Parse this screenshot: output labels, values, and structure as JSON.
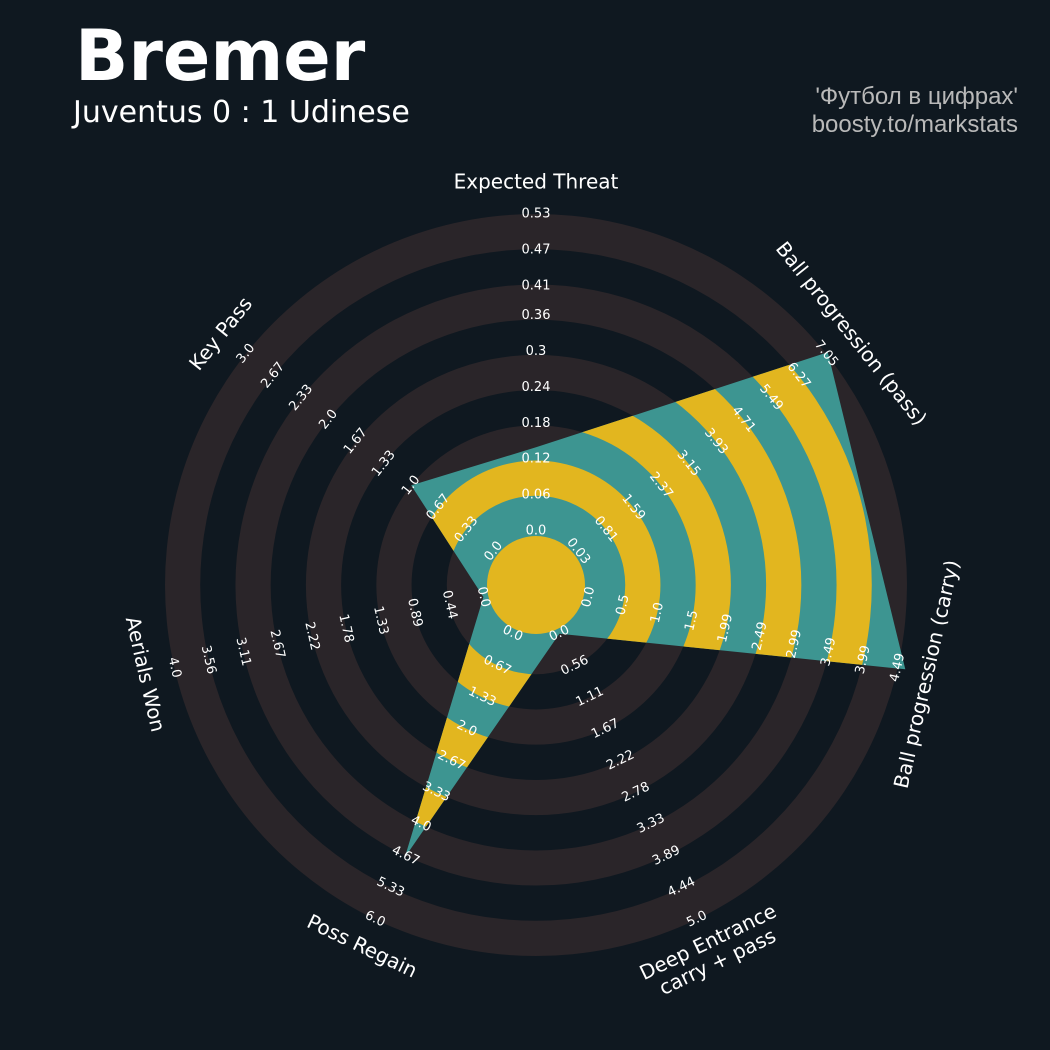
{
  "chart_data": {
    "type": "radar",
    "title": "Bremer",
    "subtitle": "Juventus 0 : 1 Udinese",
    "credits": [
      "'Футбол в цифрах'",
      "boosty.to/markstats"
    ],
    "params": [
      "Expected Threat",
      "Ball progression (pass)",
      "Ball progression (carry)",
      "Deep Entrance\ncarry + pass",
      "Poss Regain",
      "Aerials Won",
      "Key Pass"
    ],
    "ticks": [
      [
        {
          "value": 0,
          "label": "0.0"
        },
        0.06,
        0.12,
        0.18,
        0.24,
        0.3,
        0.36,
        0.41,
        0.47,
        0.53
      ],
      [
        0.03,
        0.81,
        1.59,
        2.37,
        3.15,
        3.93,
        4.71,
        5.49,
        6.27,
        7.05
      ],
      [
        {
          "value": 0,
          "label": "0.0"
        },
        0.5,
        {
          "value": 1,
          "label": "1.0"
        },
        1.5,
        1.99,
        2.49,
        2.99,
        3.49,
        3.99,
        4.49
      ],
      [
        {
          "value": 0,
          "label": "0.0"
        },
        0.56,
        1.11,
        1.67,
        2.22,
        2.78,
        3.33,
        3.89,
        4.44,
        {
          "value": 5,
          "label": "5.0"
        }
      ],
      [
        {
          "value": 0,
          "label": "0.0"
        },
        0.67,
        1.33,
        {
          "value": 2,
          "label": "2.0"
        },
        2.67,
        3.33,
        {
          "value": 4,
          "label": "4.0"
        },
        4.67,
        5.33,
        {
          "value": 6,
          "label": "6.0"
        }
      ],
      [
        {
          "value": 0,
          "label": "0.0"
        },
        0.44,
        0.89,
        1.33,
        1.78,
        2.22,
        2.67,
        3.11,
        3.56,
        {
          "value": 4,
          "label": "4.0"
        }
      ],
      [
        {
          "value": 0,
          "label": "0.0"
        },
        0.33,
        0.67,
        {
          "value": 1,
          "label": "1.0"
        },
        1.33,
        1.67,
        {
          "value": 2,
          "label": "2.0"
        },
        2.33,
        2.67,
        {
          "value": 3,
          "label": "3.0"
        }
      ]
    ],
    "values": [
      0.14,
      7.1,
      4.6,
      0,
      4.7,
      0,
      1.0
    ],
    "colors": {
      "fill": "#3d9591",
      "alt_fill": "#e2b61f",
      "band": "#2a2529"
    }
  }
}
